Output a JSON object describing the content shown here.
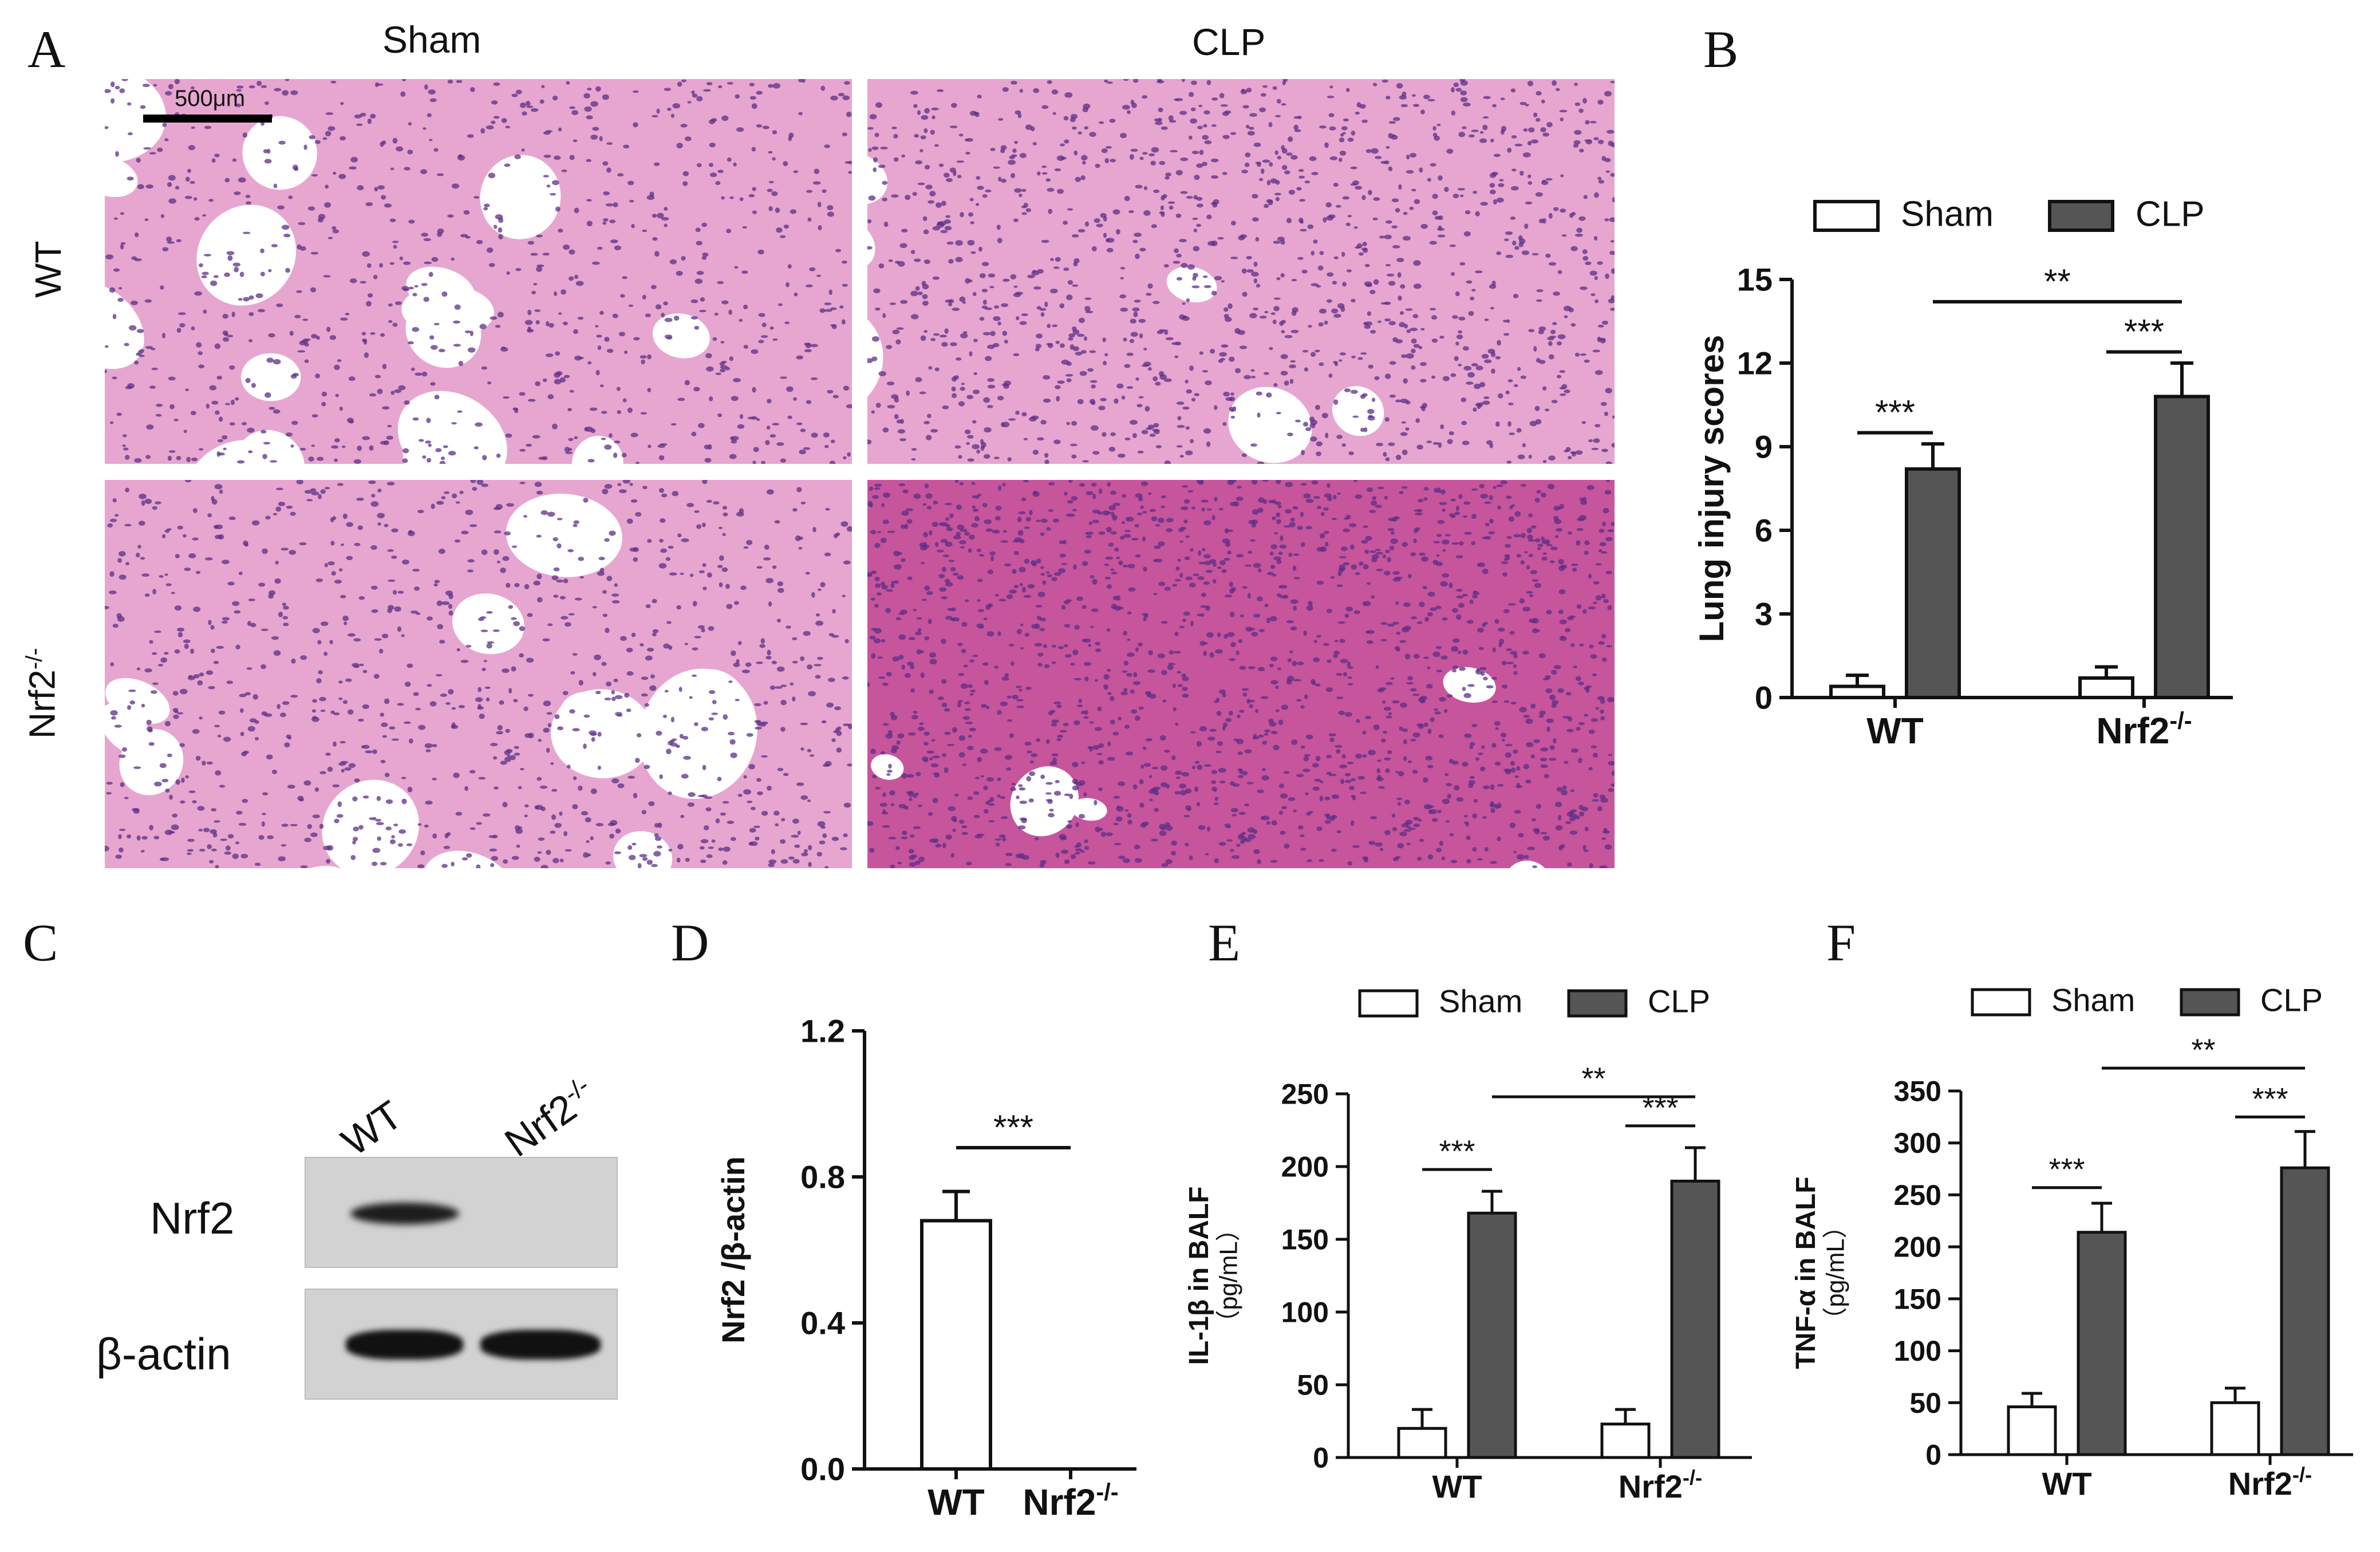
{
  "panel_letters": {
    "a": "A",
    "b": "B",
    "c": "C",
    "d": "D",
    "e": "E",
    "f": "F"
  },
  "histology": {
    "col_sham": "Sham",
    "col_clp": "CLP",
    "row_wt": "WT",
    "row_ko_main": "Nrf2",
    "row_ko_sup": "-/-",
    "scale_bar": "500μm",
    "colors": {
      "background": "#ffffff",
      "tissue": "#e6a6cf",
      "nuclei": "#5c2f86",
      "dense": "#c7559c"
    }
  },
  "blot": {
    "lane_wt": "WT",
    "lane_ko_main": "Nrf2",
    "lane_ko_sup": "-/-",
    "row_nrf2": "Nrf2",
    "row_actin": "β-actin",
    "band_color": "#151515"
  },
  "chart_data": [
    {
      "id": "B",
      "type": "bar",
      "categories": [
        "WT",
        "Nrf2"
      ],
      "category_superscripts": [
        "",
        "-/-"
      ],
      "series": [
        {
          "name": "Sham",
          "values": [
            0.4,
            0.7
          ],
          "errors": [
            0.4,
            0.4
          ],
          "color": "#ffffff"
        },
        {
          "name": "CLP",
          "values": [
            8.2,
            10.8
          ],
          "errors": [
            0.9,
            1.2
          ],
          "color": "#555555"
        }
      ],
      "ylabel": "Lung injury scores",
      "ylim": [
        0,
        15
      ],
      "yticks": [
        "0",
        "3",
        "6",
        "9",
        "12",
        "15"
      ],
      "legend_position": "top",
      "significance": [
        {
          "label": "***",
          "between": "WT Sham vs WT CLP"
        },
        {
          "label": "***",
          "between": "Nrf2-/- Sham vs Nrf2-/- CLP"
        },
        {
          "label": "**",
          "between": "WT CLP vs Nrf2-/- CLP"
        }
      ]
    },
    {
      "id": "D",
      "type": "bar",
      "categories": [
        "WT",
        "Nrf2"
      ],
      "category_superscripts": [
        "",
        "-/-"
      ],
      "series": [
        {
          "name": "Nrf2 /β-actin",
          "values": [
            0.68,
            0.0
          ],
          "errors": [
            0.08,
            0.0
          ],
          "color": "#ffffff"
        }
      ],
      "ylabel": "Nrf2 /β-actin",
      "ylim": [
        0,
        1.2
      ],
      "yticks": [
        "0.0",
        "0.4",
        "0.8",
        "1.2"
      ],
      "significance": [
        {
          "label": "***",
          "between": "WT vs Nrf2-/-"
        }
      ]
    },
    {
      "id": "E",
      "type": "bar",
      "categories": [
        "WT",
        "Nrf2"
      ],
      "category_superscripts": [
        "",
        "-/-"
      ],
      "series": [
        {
          "name": "Sham",
          "values": [
            20,
            23
          ],
          "errors": [
            13,
            10
          ],
          "color": "#ffffff"
        },
        {
          "name": "CLP",
          "values": [
            168,
            190
          ],
          "errors": [
            15,
            23
          ],
          "color": "#555555"
        }
      ],
      "ylabel": "IL-1β in BALF",
      "ylabel2": "（pg/mL）",
      "ylim": [
        0,
        250
      ],
      "yticks": [
        "0",
        "50",
        "100",
        "150",
        "200",
        "250"
      ],
      "legend_position": "top",
      "significance": [
        {
          "label": "***",
          "between": "WT Sham vs WT CLP"
        },
        {
          "label": "***",
          "between": "Nrf2-/- Sham vs Nrf2-/- CLP"
        },
        {
          "label": "**",
          "between": "WT CLP vs Nrf2-/- CLP"
        }
      ]
    },
    {
      "id": "F",
      "type": "bar",
      "categories": [
        "WT",
        "Nrf2"
      ],
      "category_superscripts": [
        "",
        "-/-"
      ],
      "series": [
        {
          "name": "Sham",
          "values": [
            46,
            50
          ],
          "errors": [
            13,
            14
          ],
          "color": "#ffffff"
        },
        {
          "name": "CLP",
          "values": [
            214,
            276
          ],
          "errors": [
            28,
            35
          ],
          "color": "#555555"
        }
      ],
      "ylabel": "TNF-α in BALF",
      "ylabel2": "（pg/mL）",
      "ylim": [
        0,
        350
      ],
      "yticks": [
        "0",
        "50",
        "100",
        "150",
        "200",
        "250",
        "300",
        "350"
      ],
      "legend_position": "top",
      "significance": [
        {
          "label": "***",
          "between": "WT Sham vs WT CLP"
        },
        {
          "label": "***",
          "between": "Nrf2-/- Sham vs Nrf2-/- CLP"
        },
        {
          "label": "**",
          "between": "WT CLP vs Nrf2-/- CLP"
        }
      ]
    }
  ]
}
